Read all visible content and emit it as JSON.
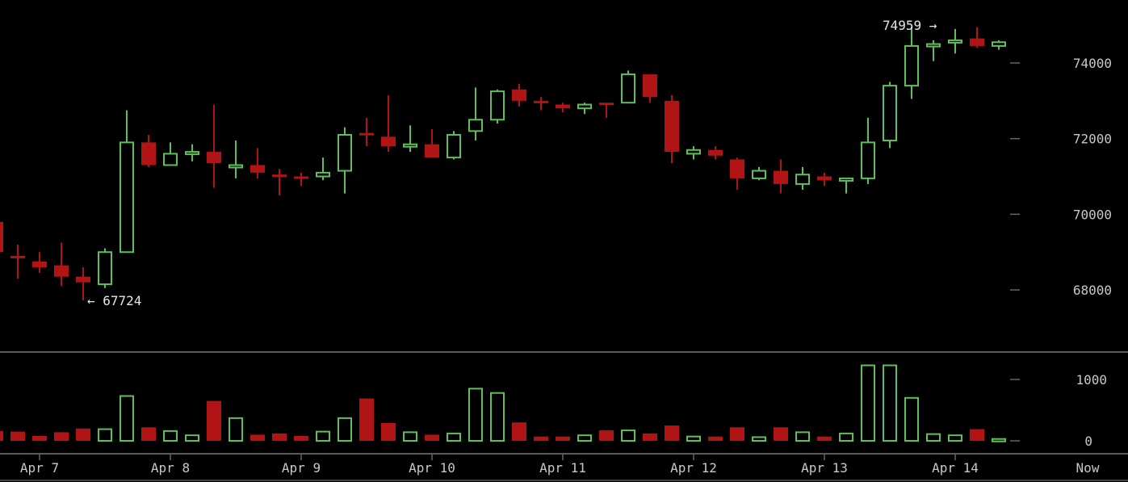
{
  "chart_data": [
    {
      "type": "candlestick",
      "title": "",
      "xlabel": "",
      "ylabel": "",
      "ylim": [
        67000,
        75200
      ],
      "grid": false,
      "y_ticks": [
        68000,
        70000,
        72000,
        74000
      ],
      "x_tick_labels": [
        "Apr 7",
        "Apr 8",
        "Apr 9",
        "Apr 10",
        "Apr 11",
        "Apr 12",
        "Apr 13",
        "Apr 14",
        "Now"
      ],
      "annotations": [
        {
          "label": "← 67724",
          "value": 67724
        },
        {
          "label": "74959 →",
          "value": 74959
        }
      ],
      "colors": {
        "up": "#5fbf5a",
        "down": "#b01414"
      },
      "candles": [
        {
          "open": 69800,
          "high": 69900,
          "low": 68900,
          "close": 69000
        },
        {
          "open": 68900,
          "high": 69200,
          "low": 68300,
          "close": 68850
        },
        {
          "open": 68750,
          "high": 69000,
          "low": 68450,
          "close": 68600
        },
        {
          "open": 68650,
          "high": 69250,
          "low": 68100,
          "close": 68350
        },
        {
          "open": 68350,
          "high": 68600,
          "low": 67724,
          "close": 68200
        },
        {
          "open": 68150,
          "high": 69100,
          "low": 68050,
          "close": 69000
        },
        {
          "open": 69000,
          "high": 72750,
          "low": 69000,
          "close": 71900
        },
        {
          "open": 71900,
          "high": 72100,
          "low": 71250,
          "close": 71300
        },
        {
          "open": 71300,
          "high": 71900,
          "low": 71300,
          "close": 71600
        },
        {
          "open": 71650,
          "high": 71850,
          "low": 71400,
          "close": 71650
        },
        {
          "open": 71650,
          "high": 72900,
          "low": 70700,
          "close": 71350
        },
        {
          "open": 71300,
          "high": 71950,
          "low": 70950,
          "close": 71300
        },
        {
          "open": 71300,
          "high": 71750,
          "low": 70950,
          "close": 71100
        },
        {
          "open": 71050,
          "high": 71200,
          "low": 70500,
          "close": 71000
        },
        {
          "open": 71000,
          "high": 71100,
          "low": 70750,
          "close": 70950
        },
        {
          "open": 71000,
          "high": 71500,
          "low": 70900,
          "close": 71100
        },
        {
          "open": 71150,
          "high": 72300,
          "low": 70550,
          "close": 72100
        },
        {
          "open": 72150,
          "high": 72550,
          "low": 71800,
          "close": 72100
        },
        {
          "open": 72050,
          "high": 73150,
          "low": 71650,
          "close": 71800
        },
        {
          "open": 71850,
          "high": 72350,
          "low": 71650,
          "close": 71850
        },
        {
          "open": 71850,
          "high": 72250,
          "low": 71500,
          "close": 71500
        },
        {
          "open": 71500,
          "high": 72200,
          "low": 71450,
          "close": 72100
        },
        {
          "open": 72200,
          "high": 73350,
          "low": 71950,
          "close": 72500
        },
        {
          "open": 72500,
          "high": 73300,
          "low": 72400,
          "close": 73250
        },
        {
          "open": 73300,
          "high": 73450,
          "low": 72850,
          "close": 73000
        },
        {
          "open": 73000,
          "high": 73100,
          "low": 72750,
          "close": 72950
        },
        {
          "open": 72900,
          "high": 72950,
          "low": 72700,
          "close": 72800
        },
        {
          "open": 72800,
          "high": 72950,
          "low": 72650,
          "close": 72900
        },
        {
          "open": 72950,
          "high": 72950,
          "low": 72550,
          "close": 72900
        },
        {
          "open": 72950,
          "high": 73800,
          "low": 72950,
          "close": 73700
        },
        {
          "open": 73700,
          "high": 73700,
          "low": 72950,
          "close": 73100
        },
        {
          "open": 73000,
          "high": 73150,
          "low": 71350,
          "close": 71650
        },
        {
          "open": 71600,
          "high": 71800,
          "low": 71450,
          "close": 71700
        },
        {
          "open": 71700,
          "high": 71800,
          "low": 71450,
          "close": 71550
        },
        {
          "open": 71450,
          "high": 71500,
          "low": 70650,
          "close": 70950
        },
        {
          "open": 70950,
          "high": 71250,
          "low": 70900,
          "close": 71150
        },
        {
          "open": 71150,
          "high": 71450,
          "low": 70550,
          "close": 70800
        },
        {
          "open": 70800,
          "high": 71250,
          "low": 70650,
          "close": 71050
        },
        {
          "open": 71000,
          "high": 71100,
          "low": 70750,
          "close": 70900
        },
        {
          "open": 70900,
          "high": 70950,
          "low": 70550,
          "close": 70950
        },
        {
          "open": 70950,
          "high": 72550,
          "low": 70800,
          "close": 71900
        },
        {
          "open": 71950,
          "high": 73500,
          "low": 71750,
          "close": 73400
        },
        {
          "open": 73400,
          "high": 74959,
          "low": 73050,
          "close": 74450
        },
        {
          "open": 74500,
          "high": 74600,
          "low": 74050,
          "close": 74500
        },
        {
          "open": 74550,
          "high": 74900,
          "low": 74250,
          "close": 74600
        },
        {
          "open": 74650,
          "high": 74950,
          "low": 74400,
          "close": 74450
        },
        {
          "open": 74450,
          "high": 74600,
          "low": 74350,
          "close": 74550
        }
      ]
    },
    {
      "type": "bar",
      "title": "Volume",
      "xlabel": "",
      "ylabel": "",
      "ylim": [
        0,
        1250
      ],
      "y_ticks": [
        0,
        1000
      ],
      "grid": false,
      "values": [
        160,
        150,
        80,
        140,
        200,
        190,
        730,
        220,
        160,
        90,
        650,
        370,
        100,
        120,
        80,
        150,
        370,
        690,
        290,
        140,
        100,
        120,
        850,
        780,
        300,
        70,
        70,
        90,
        170,
        170,
        120,
        250,
        70,
        70,
        220,
        60,
        220,
        140,
        70,
        120,
        1230,
        1230,
        700,
        110,
        90,
        190,
        30
      ],
      "directions": [
        "down",
        "down",
        "down",
        "down",
        "down",
        "up",
        "up",
        "down",
        "up",
        "up",
        "down",
        "up",
        "down",
        "down",
        "down",
        "up",
        "up",
        "down",
        "down",
        "up",
        "down",
        "up",
        "up",
        "up",
        "down",
        "down",
        "down",
        "up",
        "down",
        "up",
        "down",
        "down",
        "up",
        "down",
        "down",
        "up",
        "down",
        "up",
        "down",
        "up",
        "up",
        "up",
        "up",
        "up",
        "up",
        "down",
        "up"
      ]
    }
  ]
}
